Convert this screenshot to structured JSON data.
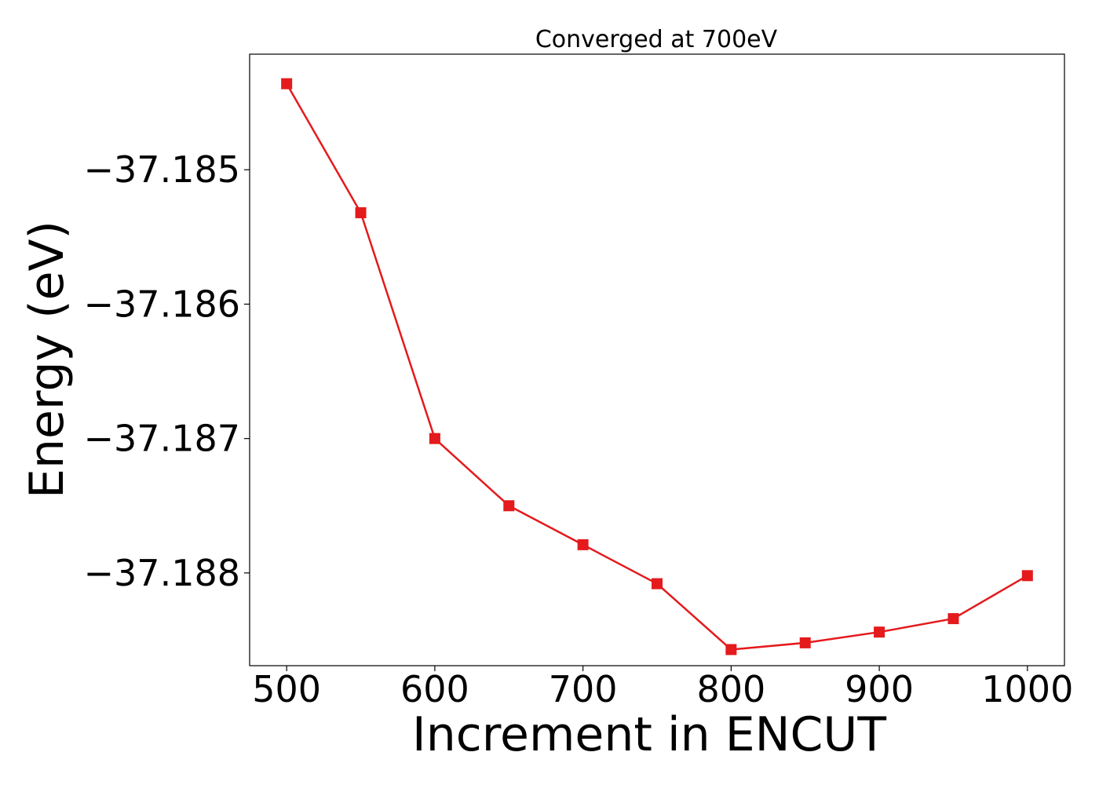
{
  "chart_data": {
    "type": "line",
    "title": "Converged at 700eV",
    "xlabel": "Increment in ENCUT",
    "ylabel": "Energy (eV)",
    "xlim": [
      475,
      1025
    ],
    "ylim": [
      -37.18869,
      -37.18414
    ],
    "x_ticks": [
      500,
      600,
      700,
      800,
      900,
      1000
    ],
    "x_tick_labels": [
      "500",
      "600",
      "700",
      "800",
      "900",
      "1000"
    ],
    "y_ticks": [
      -37.185,
      -37.186,
      -37.187,
      -37.188
    ],
    "y_tick_labels": [
      "−37.185",
      "−37.186",
      "−37.187",
      "−37.188"
    ],
    "grid": false,
    "legend": "none",
    "series": [
      {
        "color": "#e41a1c",
        "marker": "square",
        "x": [
          500,
          550,
          600,
          650,
          700,
          750,
          800,
          850,
          900,
          950,
          1000
        ],
        "y": [
          -37.18436,
          -37.18532,
          -37.187,
          -37.1875,
          -37.18779,
          -37.18808,
          -37.18857,
          -37.18852,
          -37.18844,
          -37.18834,
          -37.18802
        ]
      }
    ]
  }
}
